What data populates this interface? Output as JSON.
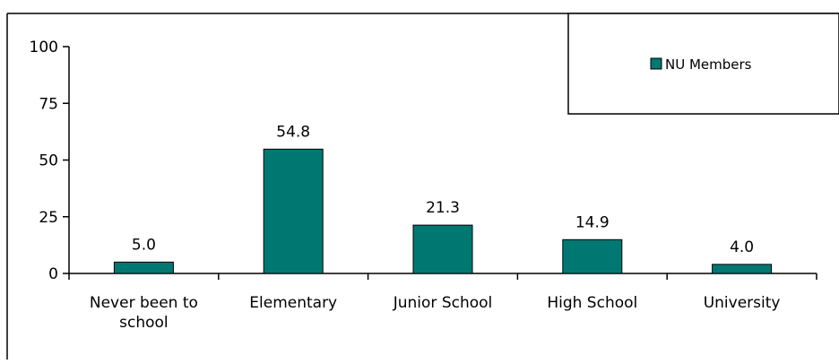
{
  "chart_data": {
    "type": "bar",
    "title": "",
    "xlabel": "",
    "ylabel": "",
    "categories": [
      [
        "Never been to",
        "school"
      ],
      [
        "Elementary"
      ],
      [
        "Junior School"
      ],
      [
        "High School"
      ],
      [
        "University"
      ]
    ],
    "series": [
      {
        "name": "NU Members",
        "values": [
          5.0,
          54.8,
          21.3,
          14.9,
          4.0
        ],
        "data_labels": [
          "5.0",
          "54.8",
          "21.3",
          "14.9",
          "4.0"
        ]
      }
    ],
    "ylim": [
      0,
      100
    ],
    "yticks": [
      "0",
      "25",
      "50",
      "75",
      "100"
    ],
    "grid": false,
    "legend_position": "top-right",
    "colors": {
      "bar_fill": "#007872",
      "bar_stroke": "#000000",
      "axis": "#000000",
      "frame": "#000000"
    }
  }
}
